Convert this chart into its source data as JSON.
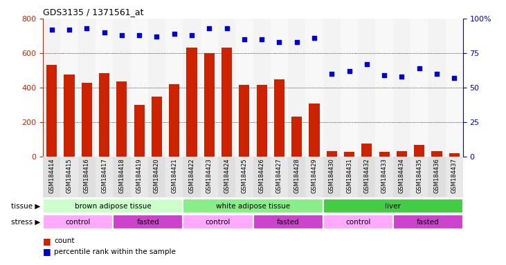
{
  "title": "GDS3135 / 1371561_at",
  "samples": [
    "GSM184414",
    "GSM184415",
    "GSM184416",
    "GSM184417",
    "GSM184418",
    "GSM184419",
    "GSM184420",
    "GSM184421",
    "GSM184422",
    "GSM184423",
    "GSM184424",
    "GSM184425",
    "GSM184426",
    "GSM184427",
    "GSM184428",
    "GSM184429",
    "GSM184430",
    "GSM184431",
    "GSM184432",
    "GSM184433",
    "GSM184434",
    "GSM184435",
    "GSM184436",
    "GSM184437"
  ],
  "counts": [
    530,
    475,
    425,
    485,
    435,
    300,
    345,
    420,
    630,
    600,
    630,
    415,
    415,
    445,
    230,
    305,
    30,
    25,
    75,
    25,
    30,
    65,
    30,
    20
  ],
  "percentile": [
    92,
    92,
    93,
    90,
    88,
    88,
    87,
    89,
    88,
    93,
    93,
    85,
    85,
    83,
    83,
    86,
    60,
    62,
    67,
    59,
    58,
    64,
    60,
    57
  ],
  "tissue_groups": [
    {
      "label": "brown adipose tissue",
      "start": 0,
      "end": 7,
      "color": "#ccffcc"
    },
    {
      "label": "white adipose tissue",
      "start": 8,
      "end": 15,
      "color": "#88ee88"
    },
    {
      "label": "liver",
      "start": 16,
      "end": 23,
      "color": "#44cc44"
    }
  ],
  "stress_groups": [
    {
      "label": "control",
      "start": 0,
      "end": 3,
      "color": "#ffaaff"
    },
    {
      "label": "fasted",
      "start": 4,
      "end": 7,
      "color": "#cc44cc"
    },
    {
      "label": "control",
      "start": 8,
      "end": 11,
      "color": "#ffaaff"
    },
    {
      "label": "fasted",
      "start": 12,
      "end": 15,
      "color": "#cc44cc"
    },
    {
      "label": "control",
      "start": 16,
      "end": 19,
      "color": "#ffaaff"
    },
    {
      "label": "fasted",
      "start": 20,
      "end": 23,
      "color": "#cc44cc"
    }
  ],
  "bar_color": "#cc2200",
  "dot_color": "#0000cc",
  "ylim_left": [
    0,
    800
  ],
  "ylim_right": [
    0,
    100
  ],
  "yticks_left": [
    0,
    200,
    400,
    600,
    800
  ],
  "ytick_labels_left": [
    "0",
    "200",
    "400",
    "600",
    "800"
  ],
  "yticks_right": [
    0,
    25,
    50,
    75,
    100
  ],
  "ytick_labels_right": [
    "0",
    "25",
    "50",
    "75",
    "100%"
  ],
  "hgrid_values": [
    200,
    400,
    600
  ],
  "background_color": "#ffffff"
}
